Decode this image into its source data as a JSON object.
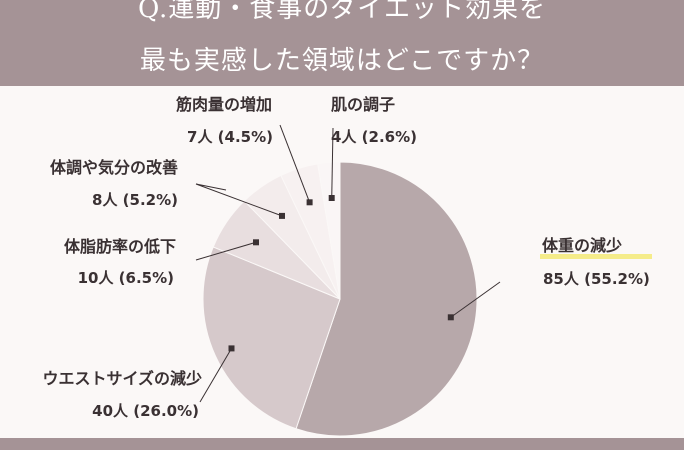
{
  "header": {
    "title_line1": "Q.運動・食事のダイエット効果を",
    "title_line2": "最も実感した領域はどこですか？"
  },
  "colors": {
    "header_bg": "#a59396",
    "slice_weight": "#b7a8aa",
    "slice_waist": "#d6c9cb",
    "slice_body_fat": "#e8dedf",
    "slice_condition": "#f3ecec",
    "slice_muscle": "#f7f1f1",
    "slice_skin": "#faf6f6",
    "highlight_underline": "#f5ec8a"
  },
  "chart_data": {
    "type": "pie",
    "title": "Q.運動・食事のダイエット効果を最も実感した領域はどこですか？",
    "slices": [
      {
        "label": "体重の減少",
        "count": 85,
        "count_label": "85人",
        "percent": 55.2,
        "percent_label": "(55.2%)",
        "color": "#b7a8aa"
      },
      {
        "label": "ウエストサイズの減少",
        "count": 40,
        "count_label": "40人",
        "percent": 26.0,
        "percent_label": "(26.0%)",
        "color": "#d6c9cb"
      },
      {
        "label": "体脂肪率の低下",
        "count": 10,
        "count_label": "10人",
        "percent": 6.5,
        "percent_label": "(6.5%)",
        "color": "#e8dedf"
      },
      {
        "label": "体調や気分の改善",
        "count": 8,
        "count_label": "8人",
        "percent": 5.2,
        "percent_label": "(5.2%)",
        "color": "#f3ecec"
      },
      {
        "label": "筋肉量の増加",
        "count": 7,
        "count_label": "7人",
        "percent": 4.5,
        "percent_label": "(4.5%)",
        "color": "#f7f1f1"
      },
      {
        "label": "肌の調子",
        "count": 4,
        "count_label": "4人",
        "percent": 2.6,
        "percent_label": "(2.6%)",
        "color": "#faf6f6"
      }
    ]
  }
}
